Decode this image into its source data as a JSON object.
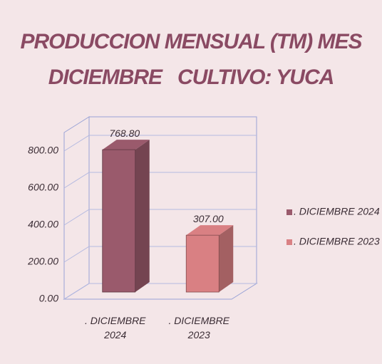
{
  "chart_data": {
    "type": "bar3d",
    "title": [
      "PRODUCCION MENSUAL (TM) MES",
      "DICIEMBRE   CULTIVO: YUCA"
    ],
    "categories": [
      ". DICIEMBRE 2024",
      ". DICIEMBRE 2023"
    ],
    "values": [
      768.8,
      307
    ],
    "value_labels": [
      "768.80",
      "307.00"
    ],
    "colors": [
      "#9a5a6c",
      "#d98083"
    ],
    "ylim": [
      0,
      900
    ],
    "yticks": [
      {
        "value": 0,
        "label": "0.00"
      },
      {
        "value": 200,
        "label": "200.00"
      },
      {
        "value": 400,
        "label": "400.00"
      },
      {
        "value": 600,
        "label": "600.00"
      },
      {
        "value": 800,
        "label": "800.00"
      }
    ],
    "grid": true,
    "legend": "right"
  }
}
